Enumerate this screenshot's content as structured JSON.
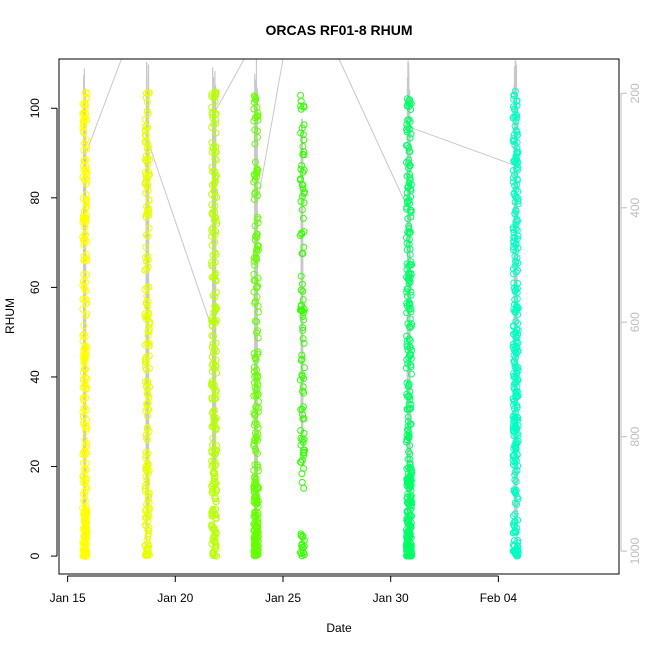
{
  "chart_data": {
    "type": "scatter",
    "title": "ORCAS RF01-8 RHUM",
    "xlabel": "Date",
    "ylabel": "RHUM",
    "xlim": [
      14.6,
      40.6
    ],
    "ylim": [
      -4,
      111
    ],
    "x_ticks": [
      {
        "value": 15,
        "label": "Jan 15"
      },
      {
        "value": 20,
        "label": "Jan 20"
      },
      {
        "value": 25,
        "label": "Jan 25"
      },
      {
        "value": 30,
        "label": "Jan 30"
      },
      {
        "value": 35,
        "label": "Feb 04"
      }
    ],
    "y_ticks": [
      0,
      20,
      40,
      60,
      80,
      100
    ],
    "right_axis": {
      "label_color": "#bdbdbd",
      "ticks": [
        200,
        400,
        600,
        800,
        1000
      ],
      "range": [
        1040,
        140
      ],
      "inverted": true
    },
    "grey_line_color": "#c8c8c8",
    "flights": [
      {
        "center": 15.8,
        "spread": 0.1,
        "pmin": 140,
        "pmax": 1020,
        "count": 260,
        "color": "#ffff00",
        "seed": 11,
        "weights": [
          0.35,
          0.25,
          0.4
        ]
      },
      {
        "center": 18.7,
        "spread": 0.11,
        "pmin": 140,
        "pmax": 1010,
        "count": 190,
        "color": "#e8ff00",
        "seed": 23,
        "weights": [
          0.2,
          0.35,
          0.45
        ]
      },
      {
        "center": 21.8,
        "spread": 0.12,
        "pmin": 150,
        "pmax": 860,
        "count": 220,
        "color": "#b8ff00",
        "seed": 37,
        "weights": [
          0.25,
          0.3,
          0.45
        ]
      },
      {
        "center": 23.75,
        "spread": 0.11,
        "pmin": 140,
        "pmax": 1010,
        "count": 240,
        "color": "#66ff00",
        "seed": 41,
        "weights": [
          0.5,
          0.22,
          0.28
        ]
      },
      {
        "center": 25.9,
        "spread": 0.1,
        "pmin": 240,
        "pmax": 820,
        "count": 110,
        "color": "#33ff00",
        "seed": 53,
        "weights": [
          0.15,
          0.4,
          0.45
        ]
      },
      {
        "center": 30.85,
        "spread": 0.12,
        "pmin": 140,
        "pmax": 1010,
        "count": 330,
        "color": "#00ff66",
        "seed": 67,
        "weights": [
          0.45,
          0.25,
          0.3
        ]
      },
      {
        "center": 35.8,
        "spread": 0.12,
        "pmin": 140,
        "pmax": 1010,
        "count": 300,
        "color": "#00ffc4",
        "seed": 79,
        "weights": [
          0.2,
          0.35,
          0.45
        ]
      }
    ],
    "transit_lines": [
      {
        "x": [
          15.8,
          17.5
        ],
        "p": [
          310,
          140
        ]
      },
      {
        "x": [
          18.7,
          21.6
        ],
        "p": [
          280,
          600
        ]
      },
      {
        "x": [
          21.8,
          23.2
        ],
        "p": [
          235,
          140
        ]
      },
      {
        "x": [
          23.85,
          25.0
        ],
        "p": [
          385,
          140
        ]
      },
      {
        "x": [
          27.6,
          30.6
        ],
        "p": [
          140,
          385
        ]
      },
      {
        "x": [
          30.95,
          35.7
        ],
        "p": [
          260,
          325
        ]
      }
    ]
  }
}
